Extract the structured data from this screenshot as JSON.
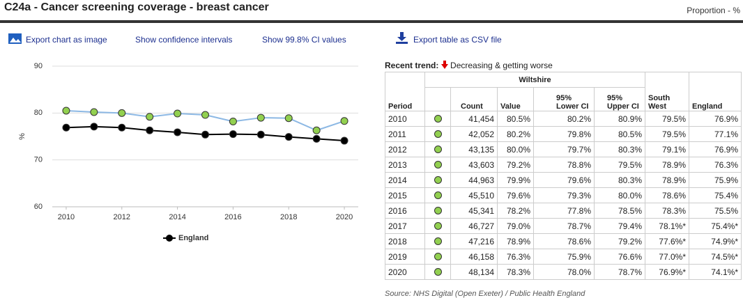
{
  "header": {
    "title": "C24a - Cancer screening coverage - breast cancer",
    "unit": "Proportion - %"
  },
  "toolbar": [
    "Export chart as image",
    "Show confidence intervals",
    "Show 99.8% CI values",
    "Export table as CSV file"
  ],
  "chart_data": {
    "type": "line",
    "y_label": "%",
    "x": [
      2010,
      2011,
      2012,
      2013,
      2014,
      2015,
      2016,
      2017,
      2018,
      2019,
      2020
    ],
    "xlim": [
      2009.5,
      2020.5
    ],
    "xticks": [
      2010,
      2012,
      2014,
      2016,
      2018,
      2020
    ],
    "ylim": [
      60,
      90
    ],
    "yticks": [
      60,
      70,
      80,
      90
    ],
    "grid": true,
    "series": [
      {
        "color": "#8cb8e4",
        "marker_color": "#92d050",
        "values": [
          80.5,
          80.2,
          80.0,
          79.2,
          79.9,
          79.6,
          78.2,
          79.0,
          78.9,
          76.3,
          78.3
        ]
      },
      {
        "name": "England",
        "color": "#000000",
        "marker_color": "#000000",
        "values": [
          76.9,
          77.1,
          76.9,
          76.3,
          75.9,
          75.4,
          75.5,
          75.4,
          74.9,
          74.5,
          74.1
        ]
      }
    ]
  },
  "trend": {
    "label": "Recent trend:",
    "text": "Decreasing & getting worse"
  },
  "table": {
    "group": "Wiltshire",
    "columns": [
      "Period",
      "Count",
      "Value",
      "95% Lower CI",
      "95% Upper CI",
      "South West",
      "England"
    ],
    "rows": [
      [
        "2010",
        "41,454",
        "80.5%",
        "80.2%",
        "80.9%",
        "79.5%",
        "76.9%"
      ],
      [
        "2011",
        "42,052",
        "80.2%",
        "79.8%",
        "80.5%",
        "79.5%",
        "77.1%"
      ],
      [
        "2012",
        "43,135",
        "80.0%",
        "79.7%",
        "80.3%",
        "79.1%",
        "76.9%"
      ],
      [
        "2013",
        "43,603",
        "79.2%",
        "78.8%",
        "79.5%",
        "78.9%",
        "76.3%"
      ],
      [
        "2014",
        "44,963",
        "79.9%",
        "79.6%",
        "80.3%",
        "78.9%",
        "75.9%"
      ],
      [
        "2015",
        "45,510",
        "79.6%",
        "79.3%",
        "80.0%",
        "78.6%",
        "75.4%"
      ],
      [
        "2016",
        "45,341",
        "78.2%",
        "77.8%",
        "78.5%",
        "78.3%",
        "75.5%"
      ],
      [
        "2017",
        "46,727",
        "79.0%",
        "78.7%",
        "79.4%",
        "78.1%*",
        "75.4%*"
      ],
      [
        "2018",
        "47,216",
        "78.9%",
        "78.6%",
        "79.2%",
        "77.6%*",
        "74.9%*"
      ],
      [
        "2019",
        "46,158",
        "76.3%",
        "75.9%",
        "76.6%",
        "77.0%*",
        "74.5%*"
      ],
      [
        "2020",
        "48,134",
        "78.3%",
        "78.0%",
        "78.7%",
        "76.9%*",
        "74.1%*"
      ]
    ]
  },
  "source": "Source: NHS Digital (Open Exeter) / Public Health England"
}
